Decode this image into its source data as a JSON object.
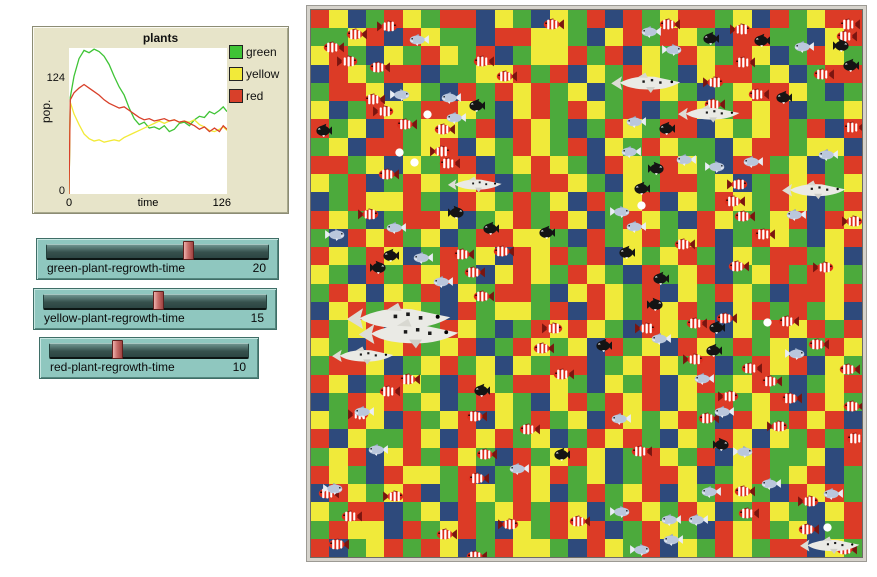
{
  "plot": {
    "title": "plants",
    "y_max_label": "124",
    "y_min_label": "0",
    "y_axis_label": "pop.",
    "x_min_label": "0",
    "x_axis_label": "time",
    "x_max_label": "126",
    "legend": [
      {
        "label": "green",
        "color": "#3FC436"
      },
      {
        "label": "yellow",
        "color": "#F2EA39"
      },
      {
        "label": "red",
        "color": "#D8402A"
      }
    ]
  },
  "chart_data": {
    "type": "line",
    "title": "plants",
    "xlabel": "time",
    "ylabel": "pop.",
    "xlim": [
      0,
      126
    ],
    "ylim": [
      0,
      124
    ],
    "grid": false,
    "legend_position": "right",
    "series": [
      {
        "name": "green",
        "color": "#3FC436",
        "points": [
          [
            0,
            0
          ],
          [
            1,
            82
          ],
          [
            4,
            100
          ],
          [
            8,
            115
          ],
          [
            12,
            122
          ],
          [
            16,
            120
          ],
          [
            20,
            123
          ],
          [
            24,
            121
          ],
          [
            28,
            117
          ],
          [
            32,
            110
          ],
          [
            36,
            100
          ],
          [
            40,
            91
          ],
          [
            44,
            84
          ],
          [
            48,
            73
          ],
          [
            52,
            64
          ],
          [
            56,
            59
          ],
          [
            60,
            61
          ],
          [
            64,
            56
          ],
          [
            68,
            57
          ],
          [
            72,
            55
          ],
          [
            76,
            58
          ],
          [
            80,
            53
          ],
          [
            84,
            55
          ],
          [
            88,
            60
          ],
          [
            92,
            61
          ],
          [
            96,
            58
          ],
          [
            100,
            63
          ],
          [
            104,
            66
          ],
          [
            108,
            65
          ],
          [
            112,
            70
          ],
          [
            116,
            68
          ],
          [
            120,
            71
          ],
          [
            123,
            74
          ],
          [
            126,
            70
          ]
        ]
      },
      {
        "name": "yellow",
        "color": "#F2EA39",
        "points": [
          [
            0,
            0
          ],
          [
            1,
            78
          ],
          [
            4,
            68
          ],
          [
            8,
            59
          ],
          [
            12,
            51
          ],
          [
            16,
            47
          ],
          [
            20,
            45
          ],
          [
            24,
            46
          ],
          [
            28,
            44
          ],
          [
            32,
            45
          ],
          [
            36,
            46
          ],
          [
            40,
            45
          ],
          [
            44,
            48
          ],
          [
            48,
            50
          ],
          [
            52,
            52
          ],
          [
            56,
            54
          ],
          [
            60,
            56
          ],
          [
            64,
            58
          ],
          [
            68,
            60
          ],
          [
            72,
            62
          ],
          [
            76,
            60
          ],
          [
            80,
            62
          ],
          [
            84,
            63
          ],
          [
            88,
            61
          ],
          [
            92,
            62
          ],
          [
            96,
            61
          ],
          [
            100,
            63
          ],
          [
            104,
            59
          ],
          [
            108,
            57
          ],
          [
            112,
            54
          ],
          [
            116,
            53
          ],
          [
            120,
            55
          ],
          [
            123,
            57
          ],
          [
            126,
            54
          ]
        ]
      },
      {
        "name": "red",
        "color": "#D8402A",
        "points": [
          [
            0,
            0
          ],
          [
            1,
            80
          ],
          [
            4,
            86
          ],
          [
            8,
            90
          ],
          [
            12,
            93
          ],
          [
            16,
            90
          ],
          [
            20,
            87
          ],
          [
            24,
            84
          ],
          [
            28,
            80
          ],
          [
            32,
            77
          ],
          [
            36,
            75
          ],
          [
            40,
            73
          ],
          [
            44,
            74
          ],
          [
            48,
            71
          ],
          [
            52,
            68
          ],
          [
            56,
            65
          ],
          [
            60,
            63
          ],
          [
            64,
            64
          ],
          [
            68,
            62
          ],
          [
            72,
            63
          ],
          [
            76,
            64
          ],
          [
            80,
            62
          ],
          [
            84,
            63
          ],
          [
            88,
            61
          ],
          [
            92,
            62
          ],
          [
            96,
            60
          ],
          [
            100,
            58
          ],
          [
            104,
            55
          ],
          [
            108,
            57
          ],
          [
            112,
            53
          ],
          [
            116,
            56
          ],
          [
            120,
            53
          ],
          [
            123,
            58
          ],
          [
            126,
            55
          ]
        ]
      }
    ]
  },
  "sliders": [
    {
      "label": "green-plant-regrowth-time",
      "value": "20",
      "fraction": 0.64
    },
    {
      "label": "yellow-plant-regrowth-time",
      "value": "15",
      "fraction": 0.51
    },
    {
      "label": "red-plant-regrowth-time",
      "value": "10",
      "fraction": 0.33
    }
  ],
  "world": {
    "palette": {
      "g": "#4CAA3C",
      "y": "#F0EA3A",
      "r": "#DC3B26",
      "b": "#2E4A7C"
    },
    "sprite_types": {
      "c": "clownfish",
      "g": "gray-fish",
      "b": "black-fish",
      "s": "shark",
      "o": "bubble"
    },
    "grid": [
      "rybgrygrrbygbygrbrgyrrgybrgyrr",
      "ggyrbryggbrryygbyrgrygbrrggbyr",
      "yrgbygrygrbgyyrgrbygrygrybgryg",
      "brygrrbggyyrgrbygrygbyrrgybgrr",
      "grrybygbrgryrgybgrrygbgyrrygbg",
      "ybgrygrrygbyrgrygrbgrygryrbggy",
      "rgybrgyygrbrygbgrygrrbygyrgrbr",
      "gybrrgyrbygrygrbygryggbyrrgyyb",
      "rrgybygrrbgyrygbrygrygbrrgybgr",
      "ygrbgrygyrbgrrygbygrrgybgryrgy",
      "bgryyrgbrygrgybrgyrbygrygrybgr",
      "rygbgrrybgyrgrybgrygbryggyrbry",
      "gbryrgybgrryygbrgyrgyrbgrygbyr",
      "rygrybgrgybryrgrbygyrgbygrrgyb",
      "ygbrgryrgbyrygrygbrgyrbgyrgryg",
      "grybygrbygrrgbyrygrbygrygbrryr",
      "byrgrygbrgyygrbrygryrgbyrgrgyb",
      "rgyrbygrygbgryrygbrygrbygryrgr",
      "ygbryrgyrbgrygybrgybrygrgybgry",
      "grrybgyrgybygrrbgyrygrbgryrbyg",
      "rybgrygbrygrrygbygrbyrgyrgbgyr",
      "bgryrgybgrygbyrgryrbygrgyrbryg",
      "ygrybrgyrbygrgybrygyrgbrygryrb",
      "rbyggrybryrgybgryrgbygrybygrgr",
      "gyrbyrgrygbrgyrybgrygrbyrggybr",
      "rygbryygrbgryrgybgrrybgyrgyrbg",
      "brygyrbgrygrybgrgyrbygrygbryrg",
      "ygrrbgybrgyrgrybgrygrybgrygbyr",
      "gryybrgyrgbygryrbgrygbryrgybgr",
      "rbgyrgrybgryygbrygrbygrygrrbyg"
    ],
    "fish": [
      [
        "c",
        34,
        18,
        1
      ],
      [
        "c",
        66,
        10,
        -1
      ],
      [
        "c",
        231,
        8,
        1
      ],
      [
        "c",
        11,
        31,
        1
      ],
      [
        "c",
        26,
        45,
        -1
      ],
      [
        "c",
        57,
        51,
        1
      ],
      [
        "c",
        161,
        45,
        1
      ],
      [
        "c",
        184,
        60,
        1
      ],
      [
        "c",
        52,
        83,
        1
      ],
      [
        "c",
        62,
        95,
        -1
      ],
      [
        "c",
        84,
        108,
        1
      ],
      [
        "c",
        122,
        113,
        1
      ],
      [
        "c",
        119,
        135,
        -1
      ],
      [
        "c",
        127,
        147,
        1
      ],
      [
        "c",
        66,
        158,
        1
      ],
      [
        "c",
        47,
        198,
        -1
      ],
      [
        "c",
        141,
        238,
        1
      ],
      [
        "c",
        181,
        235,
        1
      ],
      [
        "c",
        152,
        256,
        1
      ],
      [
        "c",
        347,
        8,
        1
      ],
      [
        "c",
        419,
        13,
        -1
      ],
      [
        "c",
        527,
        8,
        1
      ],
      [
        "c",
        524,
        20,
        1
      ],
      [
        "c",
        422,
        46,
        1
      ],
      [
        "c",
        392,
        66,
        -1
      ],
      [
        "c",
        501,
        58,
        1
      ],
      [
        "c",
        436,
        78,
        1
      ],
      [
        "c",
        392,
        88,
        1
      ],
      [
        "c",
        531,
        111,
        1
      ],
      [
        "c",
        416,
        168,
        -1
      ],
      [
        "c",
        412,
        185,
        1
      ],
      [
        "c",
        422,
        200,
        1
      ],
      [
        "c",
        531,
        205,
        -1
      ],
      [
        "c",
        442,
        218,
        1
      ],
      [
        "c",
        362,
        228,
        1
      ],
      [
        "c",
        416,
        250,
        1
      ],
      [
        "c",
        502,
        251,
        -1
      ],
      [
        "c",
        404,
        302,
        1
      ],
      [
        "c",
        466,
        305,
        1
      ],
      [
        "c",
        324,
        312,
        -1
      ],
      [
        "c",
        374,
        307,
        1
      ],
      [
        "c",
        496,
        328,
        1
      ],
      [
        "c",
        372,
        343,
        -1
      ],
      [
        "c",
        429,
        352,
        1
      ],
      [
        "c",
        527,
        353,
        1
      ],
      [
        "c",
        449,
        365,
        1
      ],
      [
        "c",
        407,
        380,
        -1
      ],
      [
        "c",
        469,
        382,
        1
      ],
      [
        "c",
        531,
        390,
        1
      ],
      [
        "c",
        386,
        402,
        1
      ],
      [
        "c",
        456,
        410,
        -1
      ],
      [
        "c",
        534,
        422,
        1
      ],
      [
        "c",
        319,
        435,
        1
      ],
      [
        "c",
        422,
        475,
        1
      ],
      [
        "c",
        487,
        485,
        -1
      ],
      [
        "c",
        426,
        497,
        1
      ],
      [
        "c",
        486,
        513,
        1
      ],
      [
        "c",
        524,
        533,
        1
      ],
      [
        "c",
        161,
        280,
        1
      ],
      [
        "c",
        231,
        312,
        -1
      ],
      [
        "c",
        221,
        332,
        1
      ],
      [
        "c",
        241,
        358,
        1
      ],
      [
        "c",
        87,
        363,
        1
      ],
      [
        "c",
        67,
        375,
        1
      ],
      [
        "c",
        37,
        398,
        -1
      ],
      [
        "c",
        154,
        400,
        1
      ],
      [
        "c",
        207,
        413,
        1
      ],
      [
        "c",
        164,
        438,
        1
      ],
      [
        "c",
        156,
        462,
        1
      ],
      [
        "c",
        6,
        477,
        1
      ],
      [
        "c",
        72,
        480,
        -1
      ],
      [
        "c",
        29,
        500,
        1
      ],
      [
        "c",
        16,
        528,
        1
      ],
      [
        "c",
        124,
        518,
        1
      ],
      [
        "c",
        187,
        508,
        -1
      ],
      [
        "c",
        257,
        505,
        1
      ],
      [
        "c",
        154,
        540,
        1
      ],
      [
        "g",
        97,
        23,
        1
      ],
      [
        "g",
        79,
        78,
        -1
      ],
      [
        "g",
        129,
        81,
        1
      ],
      [
        "g",
        134,
        101,
        1
      ],
      [
        "g",
        74,
        211,
        1
      ],
      [
        "g",
        14,
        218,
        -1
      ],
      [
        "g",
        101,
        241,
        1
      ],
      [
        "g",
        121,
        265,
        1
      ],
      [
        "g",
        329,
        15,
        1
      ],
      [
        "g",
        351,
        33,
        -1
      ],
      [
        "g",
        314,
        105,
        1
      ],
      [
        "g",
        309,
        135,
        1
      ],
      [
        "g",
        364,
        143,
        1
      ],
      [
        "g",
        394,
        150,
        -1
      ],
      [
        "g",
        431,
        145,
        1
      ],
      [
        "g",
        482,
        30,
        1
      ],
      [
        "g",
        506,
        138,
        1
      ],
      [
        "g",
        299,
        195,
        -1
      ],
      [
        "g",
        314,
        210,
        1
      ],
      [
        "g",
        474,
        198,
        1
      ],
      [
        "g",
        339,
        322,
        1
      ],
      [
        "g",
        474,
        337,
        -1
      ],
      [
        "g",
        382,
        362,
        1
      ],
      [
        "g",
        402,
        395,
        1
      ],
      [
        "g",
        299,
        402,
        1
      ],
      [
        "g",
        422,
        435,
        -1
      ],
      [
        "g",
        449,
        467,
        1
      ],
      [
        "g",
        511,
        477,
        1
      ],
      [
        "g",
        389,
        475,
        1
      ],
      [
        "g",
        299,
        495,
        -1
      ],
      [
        "g",
        349,
        503,
        1
      ],
      [
        "g",
        376,
        503,
        1
      ],
      [
        "g",
        351,
        523,
        1
      ],
      [
        "g",
        319,
        533,
        -1
      ],
      [
        "g",
        42,
        395,
        1
      ],
      [
        "g",
        56,
        433,
        1
      ],
      [
        "g",
        197,
        452,
        1
      ],
      [
        "g",
        12,
        472,
        -1
      ],
      [
        "b",
        157,
        88,
        1
      ],
      [
        "b",
        4,
        113,
        1
      ],
      [
        "b",
        137,
        195,
        -1
      ],
      [
        "b",
        171,
        211,
        1
      ],
      [
        "b",
        227,
        215,
        1
      ],
      [
        "b",
        71,
        238,
        1
      ],
      [
        "b",
        59,
        250,
        -1
      ],
      [
        "b",
        391,
        21,
        1
      ],
      [
        "b",
        442,
        23,
        1
      ],
      [
        "b",
        522,
        28,
        -1
      ],
      [
        "b",
        531,
        48,
        1
      ],
      [
        "b",
        464,
        80,
        1
      ],
      [
        "b",
        347,
        111,
        1
      ],
      [
        "b",
        337,
        151,
        -1
      ],
      [
        "b",
        322,
        171,
        1
      ],
      [
        "b",
        307,
        235,
        1
      ],
      [
        "b",
        341,
        261,
        1
      ],
      [
        "b",
        336,
        287,
        -1
      ],
      [
        "b",
        397,
        310,
        1
      ],
      [
        "b",
        394,
        333,
        1
      ],
      [
        "b",
        284,
        328,
        1
      ],
      [
        "b",
        402,
        427,
        -1
      ],
      [
        "b",
        162,
        373,
        1
      ],
      [
        "b",
        242,
        437,
        1
      ],
      [
        "s",
        299,
        62,
        1,
        72
      ],
      [
        "s",
        366,
        94,
        1,
        64
      ],
      [
        "s",
        470,
        170,
        1,
        66
      ],
      [
        "s",
        136,
        166,
        1,
        56
      ],
      [
        "s",
        34,
        292,
        1,
        108
      ],
      [
        "s",
        46,
        308,
        1,
        104
      ],
      [
        "s",
        20,
        336,
        1,
        64
      ],
      [
        "s",
        488,
        526,
        1,
        62
      ],
      [
        "o",
        112,
        100,
        1
      ],
      [
        "o",
        84,
        138,
        1
      ],
      [
        "o",
        99,
        148,
        1
      ],
      [
        "o",
        326,
        191,
        1
      ],
      [
        "o",
        452,
        308,
        1
      ],
      [
        "o",
        512,
        513,
        1
      ]
    ]
  }
}
